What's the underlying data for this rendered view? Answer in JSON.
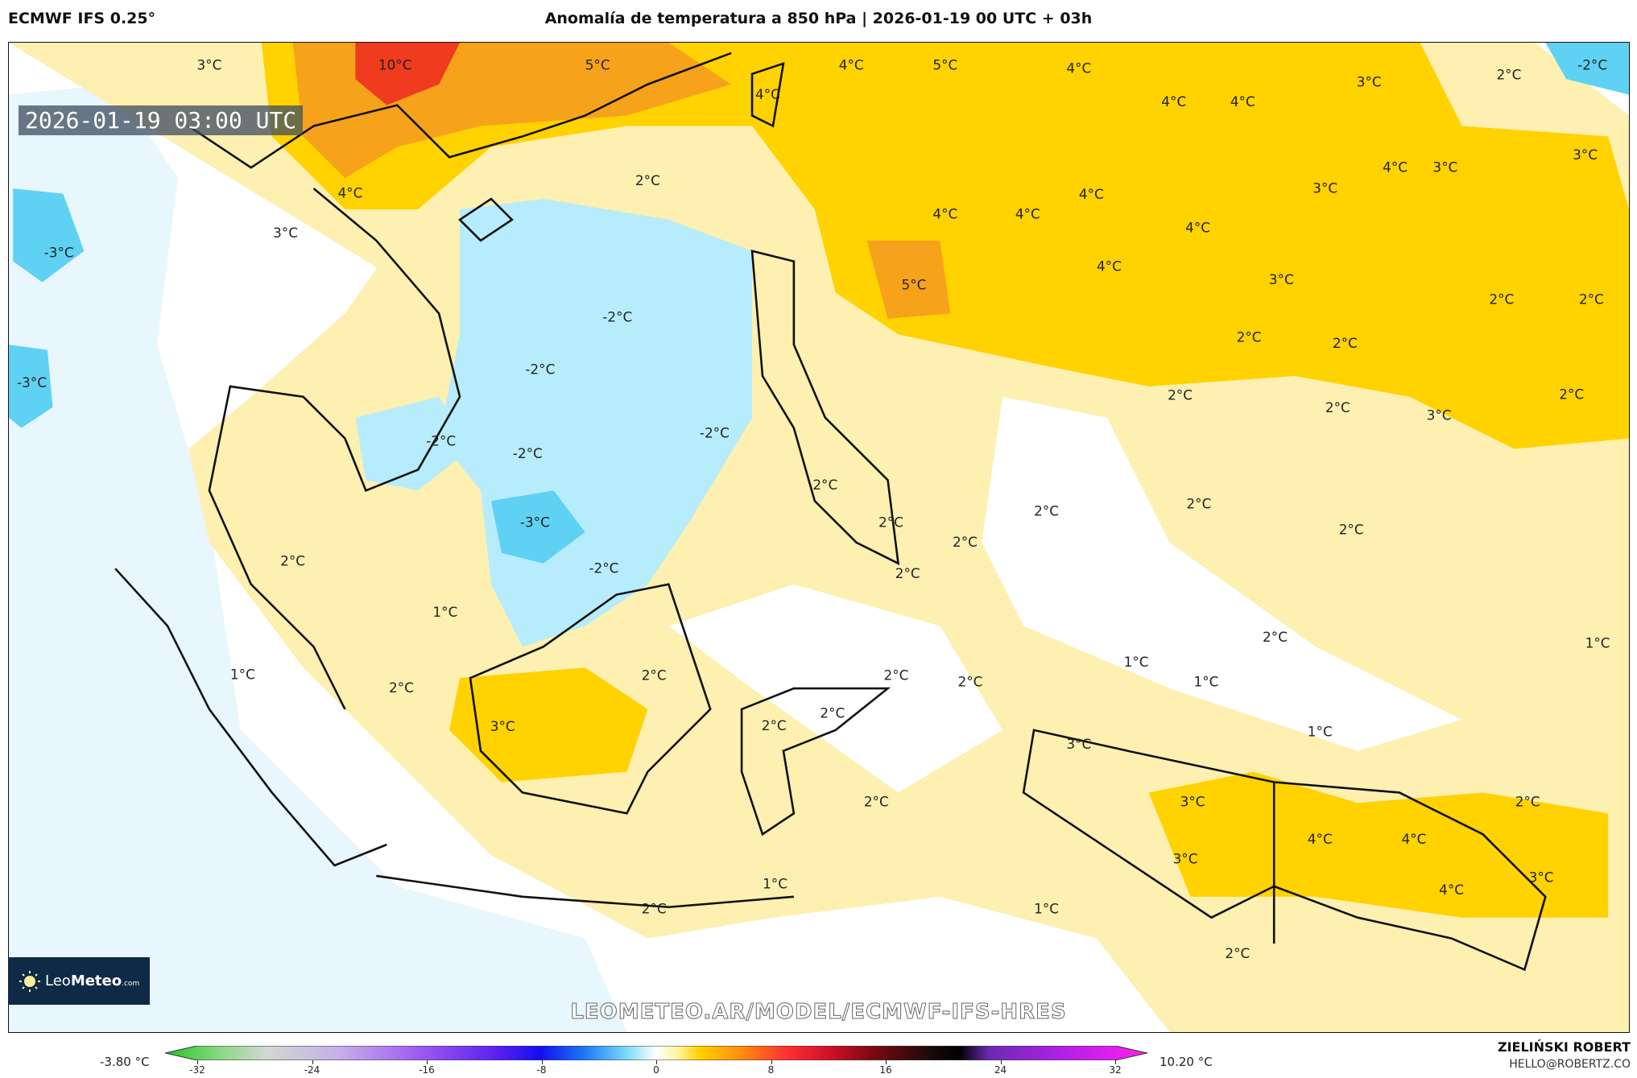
{
  "header": {
    "model": "ECMWF IFS 0.25°",
    "title": "Anomalía de temperatura a 850 hPa | 2026-01-19 00 UTC + 03h"
  },
  "map": {
    "valid_time": "2026-01-19 03:00 UTC",
    "watermark": "LEOMETEO.AR/MODEL/ECMWF-IFS-HRES",
    "logo": {
      "text_light": "Leo",
      "text_bold": "Meteo",
      "suffix": ".com"
    },
    "contour_labels": [
      "10°C",
      "5°C",
      "3°C",
      "4°C",
      "5°C",
      "4°C",
      "3°C",
      "2°C",
      "-2°C",
      "4°C",
      "4°C",
      "4°C",
      "2°C",
      "4°C",
      "3°C",
      "-3°C",
      "4°C",
      "4°C",
      "4°C",
      "4°C",
      "4°C",
      "3°C",
      "3°C",
      "3°C",
      "5°C",
      "4°C",
      "3°C",
      "2°C",
      "2°C",
      "-2°C",
      "2°C",
      "2°C",
      "-2°C",
      "-3°C",
      "2°C",
      "2°C",
      "3°C",
      "2°C",
      "-2°C",
      "-2°C",
      "-2°C",
      "2°C",
      "2°C",
      "2°C",
      "-3°C",
      "2°C",
      "2°C",
      "2°C",
      "2°C",
      "-2°C",
      "2°C",
      "1°C",
      "2°C",
      "1°C",
      "1°C",
      "1°C",
      "2°C",
      "2°C",
      "1°C",
      "2°C",
      "2°C",
      "3°C",
      "2°C",
      "2°C",
      "1°C",
      "3°C",
      "2°C",
      "3°C",
      "2°C",
      "4°C",
      "4°C",
      "3°C",
      "3°C",
      "4°C",
      "1°C",
      "2°C",
      "1°C",
      "2°C"
    ],
    "colors": {
      "red": "#ef3b1e",
      "orange": "#f7a21b",
      "yellow": "#ffd200",
      "pale_yellow": "#fdf0b0",
      "light_blue": "#b6ecfb",
      "blue": "#5fd2f3",
      "pale_blue": "#e8f6fd"
    }
  },
  "legend": {
    "min_label": "-3.80 °C",
    "max_label": "10.20 °C",
    "ticks": [
      "-32",
      "-24",
      "-16",
      "-8",
      "0",
      "8",
      "16",
      "24",
      "32"
    ],
    "range": [
      -34,
      34
    ],
    "stops": [
      [
        -34,
        "#22c81e"
      ],
      [
        -30,
        "#8fd88a"
      ],
      [
        -27,
        "#d0d8d0"
      ],
      [
        -22,
        "#c6b0ea"
      ],
      [
        -16,
        "#9a55f0"
      ],
      [
        -11,
        "#5a20f0"
      ],
      [
        -8,
        "#1010f0"
      ],
      [
        -5,
        "#1c78f5"
      ],
      [
        -2,
        "#7fdcf8"
      ],
      [
        0,
        "#ffffff"
      ],
      [
        1.5,
        "#fff4a0"
      ],
      [
        3,
        "#ffd200"
      ],
      [
        6,
        "#ff8a10"
      ],
      [
        9,
        "#ff3030"
      ],
      [
        12,
        "#d0102a"
      ],
      [
        15,
        "#7a0a10"
      ],
      [
        19,
        "#1a0a0a"
      ],
      [
        21,
        "#000000"
      ],
      [
        23,
        "#6a2ab0"
      ],
      [
        28,
        "#b020e8"
      ],
      [
        34,
        "#ff20f0"
      ]
    ]
  },
  "credits": {
    "author": "ZIELIŃSKI ROBERT",
    "email": "HELLO@ROBERTZ.CO"
  }
}
